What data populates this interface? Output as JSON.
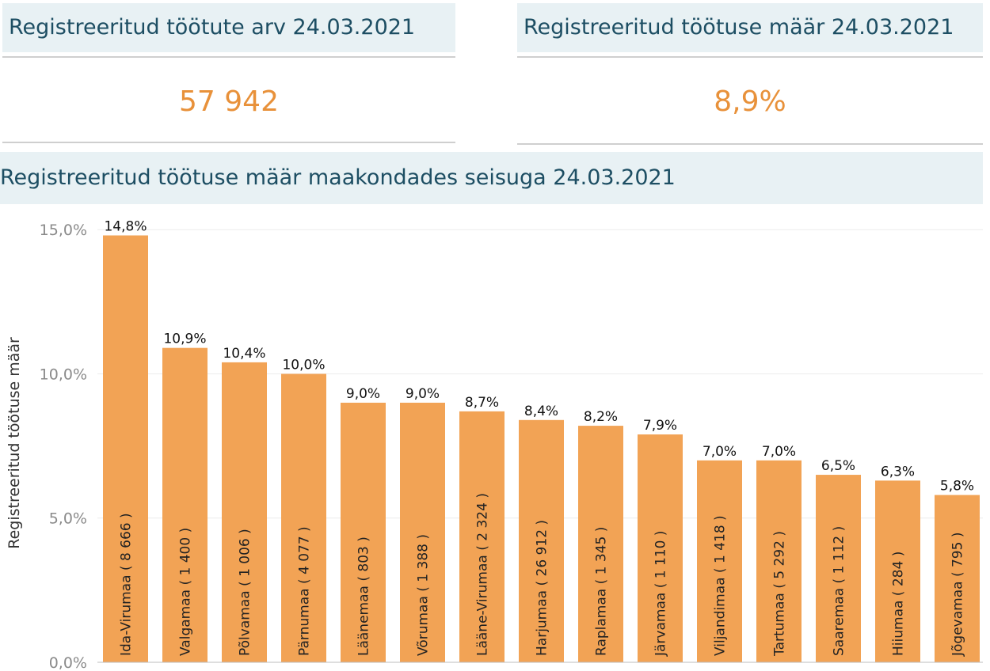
{
  "kpi_cards": [
    {
      "title": "Registreeritud töötute arv 24.03.2021",
      "value": "57 942"
    },
    {
      "title": "Registreeritud töötuse määr 24.03.2021",
      "value": "8,9%"
    }
  ],
  "chart_section": {
    "title": "Registreeritud töötuse määr maakondades seisuga 24.03.2021"
  },
  "colors": {
    "bar": "#f2a355",
    "kpi_value": "#e8913a",
    "header_bg": "#e8f1f4",
    "header_text": "#1d4e63"
  },
  "chart_data": {
    "type": "bar",
    "ylabel": "Registreeritud töötuse määr",
    "ylim": [
      0,
      15.5
    ],
    "yticks": [
      0,
      5,
      10,
      15
    ],
    "ytick_labels": [
      "0,0%",
      "5,0%",
      "10,0%",
      "15,0%"
    ],
    "grid": true,
    "categories": [
      "Ida-Virumaa ( 8 666 )",
      "Valgamaa ( 1 400 )",
      "Põlvamaa ( 1 006 )",
      "Pärnumaa ( 4 077 )",
      "Läänemaa ( 803 )",
      "Võrumaa ( 1 388 )",
      "Lääne-Virumaa ( 2 324 )",
      "Harjumaa ( 26 912 )",
      "Raplamaa ( 1 345 )",
      "Järvamaa ( 1 110 )",
      "Viljandimaa ( 1 418 )",
      "Tartumaa ( 5 292 )",
      "Saaremaa ( 1 112 )",
      "Hiiumaa ( 284 )",
      "Jõgevamaa ( 795 )"
    ],
    "values": [
      14.8,
      10.9,
      10.4,
      10.0,
      9.0,
      9.0,
      8.7,
      8.4,
      8.2,
      7.9,
      7.0,
      7.0,
      6.5,
      6.3,
      5.8
    ],
    "value_labels": [
      "14,8%",
      "10,9%",
      "10,4%",
      "10,0%",
      "9,0%",
      "9,0%",
      "8,7%",
      "8,4%",
      "8,2%",
      "7,9%",
      "7,0%",
      "7,0%",
      "6,5%",
      "6,3%",
      "5,8%"
    ]
  }
}
